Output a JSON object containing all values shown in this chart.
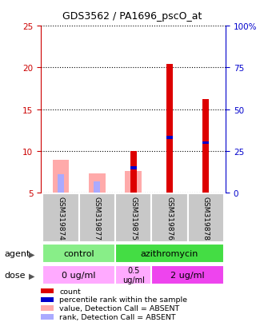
{
  "title": "GDS3562 / PA1696_pscO_at",
  "samples": [
    "GSM319874",
    "GSM319877",
    "GSM319875",
    "GSM319876",
    "GSM319878"
  ],
  "ylim_left": [
    5,
    25
  ],
  "ylim_right": [
    0,
    100
  ],
  "yticks_left": [
    5,
    10,
    15,
    20,
    25
  ],
  "yticks_right": [
    0,
    25,
    50,
    75,
    100
  ],
  "ytick_labels_left": [
    "5",
    "10",
    "15",
    "20",
    "25"
  ],
  "ytick_labels_right": [
    "0",
    "25",
    "50",
    "75",
    "100%"
  ],
  "count_bars": {
    "GSM319874": null,
    "GSM319877": null,
    "GSM319875": 10.0,
    "GSM319876": 20.4,
    "GSM319878": 16.2
  },
  "rank_marker": {
    "GSM319874": null,
    "GSM319877": null,
    "GSM319875": 8.0,
    "GSM319876": 11.6,
    "GSM319878": 11.0
  },
  "absent_value_bars": {
    "GSM319874": 8.9,
    "GSM319877": 7.3,
    "GSM319875": 7.6,
    "GSM319876": null,
    "GSM319878": null
  },
  "absent_rank_bars": {
    "GSM319874": 7.2,
    "GSM319877": 6.4,
    "GSM319875": 8.0,
    "GSM319876": null,
    "GSM319878": null
  },
  "bar_bottom": 5,
  "colors": {
    "count": "#dd0000",
    "rank": "#0000cc",
    "absent_value": "#ffaaaa",
    "absent_rank": "#aaaaff",
    "sample_bg": "#c8c8c8",
    "agent_control": "#88ee88",
    "agent_azithromycin": "#44dd44",
    "dose_0": "#ffaaff",
    "dose_05": "#ffaaff",
    "dose_2": "#ee44ee",
    "left_axis": "#cc0000",
    "right_axis": "#0000cc"
  },
  "legend_items": [
    {
      "label": "count",
      "color": "#dd0000"
    },
    {
      "label": "percentile rank within the sample",
      "color": "#0000cc"
    },
    {
      "label": "value, Detection Call = ABSENT",
      "color": "#ffaaaa"
    },
    {
      "label": "rank, Detection Call = ABSENT",
      "color": "#aaaaff"
    }
  ]
}
